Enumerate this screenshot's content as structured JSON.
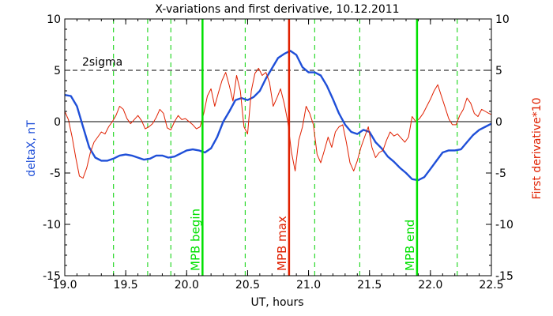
{
  "chart_data": {
    "type": "line",
    "title": "X-variations and first derivative, 10.12.2011",
    "xlabel": "UT, hours",
    "ylabel_left": "deltaX, nT",
    "ylabel_right": "First derivative*10",
    "xlim": [
      19.0,
      22.5
    ],
    "ylim": [
      -15,
      10
    ],
    "x_ticks": [
      "19.0",
      "19.5",
      "20.0",
      "20.5",
      "21.0",
      "21.5",
      "22.0",
      "22.5"
    ],
    "y_ticks": [
      "-15",
      "-10",
      "-5",
      "0",
      "5",
      "10"
    ],
    "sigma_level": 5,
    "sigma_label": "2sigma",
    "zero_line": 0,
    "markers": [
      {
        "label": "MPB begin",
        "x": 20.13,
        "color": "#00e000"
      },
      {
        "label": "MPB max",
        "x": 20.84,
        "color": "#e02000"
      },
      {
        "label": "MPB end",
        "x": 21.89,
        "color": "#00e000"
      }
    ],
    "dashed_verticals": [
      19.4,
      19.68,
      19.87,
      20.48,
      21.05,
      21.42,
      22.22
    ],
    "series": [
      {
        "name": "deltaX, nT",
        "color": "#1f4fd8",
        "x": [
          19.0,
          19.05,
          19.1,
          19.15,
          19.2,
          19.25,
          19.3,
          19.35,
          19.4,
          19.45,
          19.5,
          19.55,
          19.6,
          19.65,
          19.7,
          19.75,
          19.8,
          19.85,
          19.9,
          19.95,
          20.0,
          20.05,
          20.1,
          20.15,
          20.2,
          20.25,
          20.3,
          20.35,
          20.4,
          20.45,
          20.5,
          20.55,
          20.6,
          20.65,
          20.7,
          20.75,
          20.8,
          20.85,
          20.9,
          20.95,
          21.0,
          21.05,
          21.1,
          21.15,
          21.2,
          21.25,
          21.3,
          21.35,
          21.4,
          21.45,
          21.5,
          21.55,
          21.6,
          21.65,
          21.7,
          21.75,
          21.8,
          21.85,
          21.9,
          21.95,
          22.0,
          22.05,
          22.1,
          22.15,
          22.2,
          22.25,
          22.3,
          22.35,
          22.4,
          22.45,
          22.5
        ],
        "values": [
          2.6,
          2.5,
          1.5,
          -0.5,
          -2.5,
          -3.5,
          -3.8,
          -3.8,
          -3.6,
          -3.3,
          -3.2,
          -3.3,
          -3.5,
          -3.7,
          -3.6,
          -3.3,
          -3.3,
          -3.5,
          -3.4,
          -3.1,
          -2.8,
          -2.7,
          -2.8,
          -3.0,
          -2.6,
          -1.5,
          0.0,
          1.0,
          2.1,
          2.3,
          2.1,
          2.4,
          3.0,
          4.2,
          5.2,
          6.2,
          6.6,
          6.9,
          6.5,
          5.3,
          4.8,
          4.8,
          4.5,
          3.5,
          2.2,
          0.8,
          -0.3,
          -1.0,
          -1.2,
          -0.8,
          -1.0,
          -2.0,
          -2.6,
          -3.4,
          -3.9,
          -4.5,
          -5.0,
          -5.6,
          -5.7,
          -5.4,
          -4.6,
          -3.8,
          -3.0,
          -2.8,
          -2.8,
          -2.7,
          -2.0,
          -1.3,
          -0.8,
          -0.5,
          -0.2
        ]
      },
      {
        "name": "First derivative*10",
        "color": "#e02000",
        "x": [
          19.0,
          19.03,
          19.06,
          19.09,
          19.12,
          19.15,
          19.18,
          19.21,
          19.24,
          19.27,
          19.3,
          19.33,
          19.36,
          19.39,
          19.42,
          19.45,
          19.48,
          19.51,
          19.54,
          19.57,
          19.6,
          19.63,
          19.66,
          19.69,
          19.72,
          19.75,
          19.78,
          19.81,
          19.84,
          19.87,
          19.9,
          19.93,
          19.96,
          19.99,
          20.02,
          20.05,
          20.08,
          20.11,
          20.14,
          20.17,
          20.2,
          20.23,
          20.26,
          20.29,
          20.32,
          20.35,
          20.38,
          20.41,
          20.44,
          20.47,
          20.5,
          20.53,
          20.56,
          20.59,
          20.62,
          20.65,
          20.68,
          20.71,
          20.74,
          20.77,
          20.8,
          20.83,
          20.86,
          20.89,
          20.92,
          20.95,
          20.98,
          21.01,
          21.04,
          21.07,
          21.1,
          21.13,
          21.16,
          21.19,
          21.22,
          21.25,
          21.28,
          21.31,
          21.34,
          21.37,
          21.4,
          21.43,
          21.46,
          21.49,
          21.52,
          21.55,
          21.58,
          21.61,
          21.64,
          21.67,
          21.7,
          21.73,
          21.76,
          21.79,
          21.82,
          21.85,
          21.88,
          21.91,
          21.94,
          21.97,
          22.0,
          22.03,
          22.06,
          22.09,
          22.12,
          22.15,
          22.18,
          22.21,
          22.24,
          22.27,
          22.3,
          22.33,
          22.36,
          22.39,
          22.42,
          22.45,
          22.48,
          22.5
        ],
        "values": [
          1.0,
          0.2,
          -1.5,
          -3.5,
          -5.3,
          -5.5,
          -4.5,
          -3.0,
          -2.0,
          -1.5,
          -1.0,
          -1.2,
          -0.5,
          0.0,
          0.6,
          1.5,
          1.2,
          0.3,
          -0.2,
          0.2,
          0.6,
          0.1,
          -0.7,
          -0.5,
          -0.2,
          0.4,
          1.2,
          0.8,
          -0.6,
          -0.8,
          0.0,
          0.6,
          0.2,
          0.3,
          0.0,
          -0.3,
          -0.7,
          -0.5,
          0.8,
          2.5,
          3.2,
          1.5,
          2.8,
          4.0,
          4.8,
          3.5,
          2.0,
          4.5,
          3.0,
          -0.5,
          -1.2,
          3.0,
          4.7,
          5.2,
          4.5,
          4.8,
          3.8,
          1.5,
          2.3,
          3.2,
          1.8,
          0.0,
          -3.0,
          -4.8,
          -1.8,
          -0.5,
          1.5,
          0.8,
          -0.3,
          -3.2,
          -4.0,
          -2.8,
          -1.5,
          -2.5,
          -1.0,
          -0.5,
          -0.3,
          -2.0,
          -4.0,
          -4.8,
          -3.8,
          -2.5,
          -1.5,
          -0.5,
          -2.5,
          -3.5,
          -3.0,
          -2.8,
          -1.8,
          -1.0,
          -1.4,
          -1.2,
          -1.6,
          -2.0,
          -1.5,
          0.5,
          0.0,
          0.3,
          0.8,
          1.5,
          2.2,
          3.0,
          3.6,
          2.5,
          1.4,
          0.3,
          -0.3,
          -0.3,
          0.6,
          1.2,
          2.3,
          1.8,
          0.8,
          0.5,
          1.2,
          1.0,
          0.8,
          0.7
        ]
      }
    ]
  }
}
